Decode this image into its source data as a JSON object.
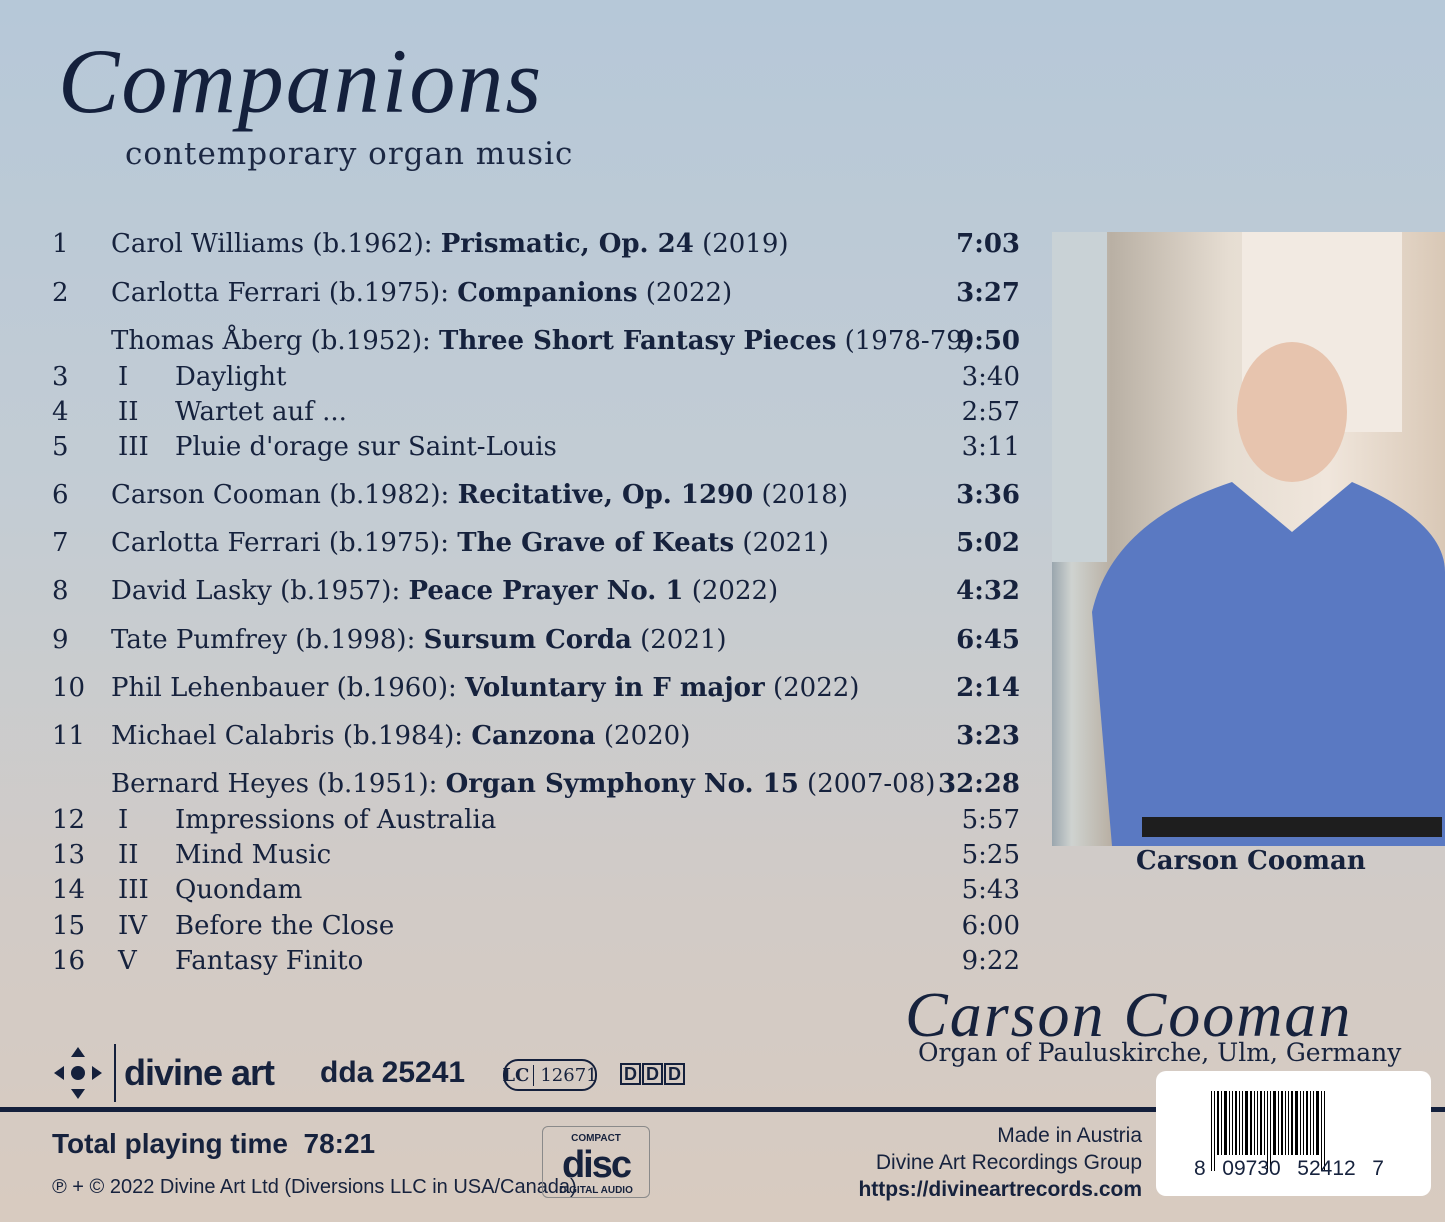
{
  "album": {
    "title": "Companions",
    "subtitle": "contemporary organ music"
  },
  "tracks": [
    {
      "type": "track",
      "num": "1",
      "pre": "Carol Williams (b.1962): ",
      "work": "Prismatic, Op. 24",
      "post": " (2019)",
      "time": "7:03"
    },
    {
      "type": "track",
      "num": "2",
      "pre": "Carlotta Ferrari (b.1975):  ",
      "work": "Companions",
      "post": " (2022)",
      "time": "3:27"
    },
    {
      "type": "header",
      "num": "",
      "pre": "Thomas Åberg (b.1952): ",
      "work": "Three Short Fantasy Pieces",
      "post": " (1978-79)",
      "time": "9:50"
    },
    {
      "type": "sub",
      "num": "3",
      "mv": "I",
      "pre": "Daylight",
      "time": "3:40"
    },
    {
      "type": "sub",
      "num": "4",
      "mv": "II",
      "pre": "Wartet auf ...",
      "time": "2:57"
    },
    {
      "type": "sub",
      "num": "5",
      "mv": "III",
      "pre": "Pluie d'orage sur Saint-Louis",
      "time": "3:11"
    },
    {
      "type": "track",
      "num": "6",
      "pre": "Carson Cooman (b.1982): ",
      "work": "Recitative, Op. 1290",
      "post": " (2018)",
      "time": "3:36"
    },
    {
      "type": "track",
      "num": "7",
      "pre": "Carlotta Ferrari (b.1975): ",
      "work": "The Grave of Keats",
      "post": " (2021)",
      "time": "5:02"
    },
    {
      "type": "track",
      "num": "8",
      "pre": "David Lasky (b.1957): ",
      "work": "Peace Prayer No. 1",
      "post": " (2022)",
      "time": "4:32"
    },
    {
      "type": "track",
      "num": "9",
      "pre": "Tate Pumfrey (b.1998): ",
      "work": "Sursum Corda",
      "post": " (2021)",
      "time": "6:45"
    },
    {
      "type": "track",
      "num": "10",
      "pre": "Phil Lehenbauer (b.1960): ",
      "work": "Voluntary in F major",
      "post": " (2022)",
      "time": "2:14"
    },
    {
      "type": "track",
      "num": "11",
      "pre": "Michael Calabris (b.1984): ",
      "work": "Canzona",
      "post": " (2020)",
      "time": "3:23"
    },
    {
      "type": "header",
      "num": "",
      "pre": "Bernard Heyes (b.1951): ",
      "work": "Organ Symphony No. 15",
      "post": " (2007-08)",
      "time": "32:28"
    },
    {
      "type": "sub",
      "num": "12",
      "mv": "I",
      "pre": "Impressions of Australia",
      "time": "5:57"
    },
    {
      "type": "sub",
      "num": "13",
      "mv": "II",
      "pre": "Mind Music",
      "time": "5:25"
    },
    {
      "type": "sub",
      "num": "14",
      "mv": "III",
      "pre": "Quondam",
      "time": "5:43"
    },
    {
      "type": "sub",
      "num": "15",
      "mv": "IV",
      "pre": "Before the Close",
      "time": "6:00"
    },
    {
      "type": "sub",
      "num": "16",
      "mv": "V",
      "pre": "Fantasy Finito",
      "time": "9:22"
    }
  ],
  "photo": {
    "caption": "Carson Cooman"
  },
  "performer": {
    "name": "Carson Cooman",
    "venue": "Organ of Pauluskirche, Ulm, Germany"
  },
  "label": {
    "name": "divine art",
    "catalog": "dda 25241",
    "lc_prefix": "LC",
    "lc": "12671",
    "ddd": [
      "D",
      "D",
      "D"
    ]
  },
  "total": {
    "label": "Total playing time",
    "value": "78:21"
  },
  "copyright": "℗ + © 2022 Divine Art Ltd (Diversions LLC in USA/Canada)",
  "cd_logo": {
    "top": "COMPACT",
    "big": "disc",
    "bottom": "DIGITAL AUDIO"
  },
  "credits": {
    "made_in": "Made in Austria",
    "group": "Divine Art Recordings Group",
    "url": "https://divineartrecords.com"
  },
  "barcode": {
    "digits": [
      "8",
      "09730",
      "52412",
      "7"
    ]
  },
  "colors": {
    "text": "#14203c",
    "background_top": "#b6c8d8",
    "background_bottom": "#d8cbc0"
  }
}
